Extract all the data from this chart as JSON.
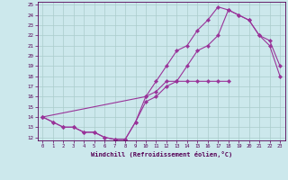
{
  "xlabel": "Windchill (Refroidissement éolien,°C)",
  "ylabel": "",
  "bg_color": "#cce8ec",
  "line_color": "#993399",
  "grid_color": "#aacccc",
  "xlim": [
    -0.5,
    23.5
  ],
  "ylim": [
    11.7,
    25.3
  ],
  "xticks": [
    0,
    1,
    2,
    3,
    4,
    5,
    6,
    7,
    8,
    9,
    10,
    11,
    12,
    13,
    14,
    15,
    16,
    17,
    18,
    19,
    20,
    21,
    22,
    23
  ],
  "yticks": [
    12,
    13,
    14,
    15,
    16,
    17,
    18,
    19,
    20,
    21,
    22,
    23,
    24,
    25
  ],
  "line1_x": [
    0,
    1,
    2,
    3,
    4,
    5,
    6,
    7,
    8,
    9,
    10,
    11,
    12,
    13,
    14,
    15,
    16,
    17,
    18,
    19,
    20,
    21,
    22,
    23
  ],
  "line1_y": [
    14,
    13.5,
    13,
    13,
    12.5,
    12.5,
    12,
    11.8,
    11.8,
    13.5,
    15.5,
    16,
    17,
    17.5,
    19,
    20.5,
    21,
    22,
    24.5,
    24,
    23.5,
    22,
    21,
    18
  ],
  "line2_x": [
    0,
    10,
    11,
    12,
    13,
    14,
    15,
    16,
    17,
    18,
    19,
    20,
    21,
    22,
    23
  ],
  "line2_y": [
    14,
    16,
    17.5,
    19,
    20.5,
    21,
    22.5,
    23.5,
    24.8,
    24.5,
    24,
    23.5,
    22,
    21.5,
    19
  ],
  "line3_x": [
    0,
    1,
    2,
    3,
    4,
    5,
    6,
    7,
    8,
    9,
    10,
    11,
    12,
    13,
    14,
    15,
    16,
    17,
    18
  ],
  "line3_y": [
    14,
    13.5,
    13,
    13,
    12.5,
    12.5,
    12,
    11.8,
    11.8,
    13.5,
    16,
    16.5,
    17.5,
    17.5,
    17.5,
    17.5,
    17.5,
    17.5,
    17.5
  ]
}
